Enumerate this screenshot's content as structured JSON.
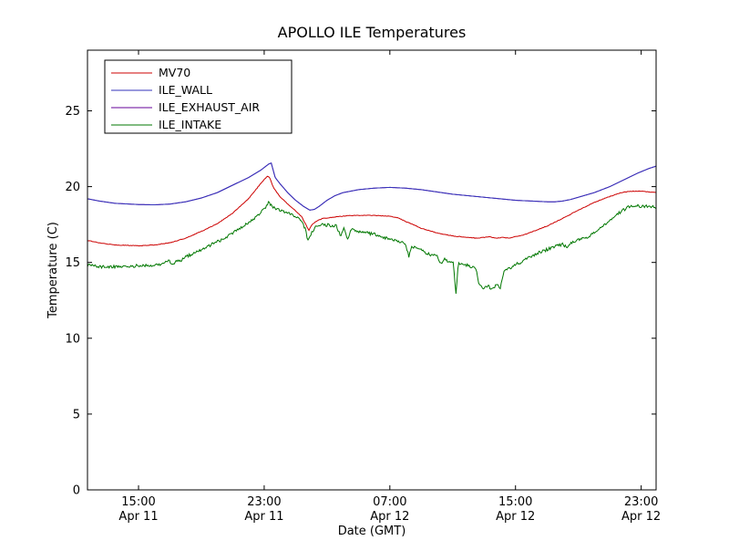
{
  "figure": {
    "title": "APOLLO ILE Temperatures",
    "xlabel": "Date (GMT)",
    "ylabel": "Temperature (C)",
    "background": "#ffffff",
    "frame_color": "#000000"
  },
  "chart_data": {
    "type": "line",
    "title": "APOLLO ILE Temperatures",
    "xlabel": "Date (GMT)",
    "ylabel": "Temperature (C)",
    "x_unit": "hours since Apr 11 00:00 GMT",
    "xlim": [
      11.75,
      47.95
    ],
    "ylim": [
      0,
      29
    ],
    "grid": false,
    "legend_position": "upper-left",
    "yticks": [
      0,
      5,
      10,
      15,
      20,
      25
    ],
    "xticks": [
      {
        "x": 15,
        "line1": "15:00",
        "line2": "Apr 11"
      },
      {
        "x": 23,
        "line1": "23:00",
        "line2": "Apr 11"
      },
      {
        "x": 31,
        "line1": "07:00",
        "line2": "Apr 12"
      },
      {
        "x": 39,
        "line1": "15:00",
        "line2": "Apr 12"
      },
      {
        "x": 47,
        "line1": "23:00",
        "line2": "Apr 12"
      }
    ],
    "draw_order": [
      "ILE_EXHAUST_AIR",
      "ILE_WALL",
      "MV70",
      "ILE_INTAKE"
    ],
    "series": [
      {
        "name": "MV70",
        "color": "#cc0000",
        "noise": 0.02,
        "points": [
          [
            11.75,
            16.45
          ],
          [
            12.5,
            16.3
          ],
          [
            13.5,
            16.15
          ],
          [
            15,
            16.1
          ],
          [
            16,
            16.15
          ],
          [
            17,
            16.3
          ],
          [
            18,
            16.6
          ],
          [
            19,
            17.05
          ],
          [
            20,
            17.55
          ],
          [
            21,
            18.25
          ],
          [
            22,
            19.2
          ],
          [
            22.7,
            20.1
          ],
          [
            23.2,
            20.7
          ],
          [
            23.35,
            20.6
          ],
          [
            23.6,
            19.9
          ],
          [
            24,
            19.35
          ],
          [
            24.5,
            18.85
          ],
          [
            25,
            18.4
          ],
          [
            25.4,
            18.0
          ],
          [
            25.7,
            17.4
          ],
          [
            25.85,
            17.1
          ],
          [
            26,
            17.45
          ],
          [
            26.3,
            17.7
          ],
          [
            26.7,
            17.9
          ],
          [
            27.5,
            18.0
          ],
          [
            28.5,
            18.1
          ],
          [
            30,
            18.1
          ],
          [
            31,
            18.05
          ],
          [
            31.5,
            17.95
          ],
          [
            32,
            17.7
          ],
          [
            32.5,
            17.5
          ],
          [
            33,
            17.25
          ],
          [
            34,
            16.95
          ],
          [
            35,
            16.75
          ],
          [
            36,
            16.65
          ],
          [
            36.5,
            16.6
          ],
          [
            37,
            16.65
          ],
          [
            37.3,
            16.7
          ],
          [
            37.8,
            16.6
          ],
          [
            38.2,
            16.65
          ],
          [
            38.6,
            16.6
          ],
          [
            39,
            16.7
          ],
          [
            39.5,
            16.8
          ],
          [
            40,
            17.0
          ],
          [
            41,
            17.4
          ],
          [
            42,
            17.9
          ],
          [
            43,
            18.45
          ],
          [
            44,
            18.95
          ],
          [
            45,
            19.35
          ],
          [
            45.7,
            19.6
          ],
          [
            46.3,
            19.7
          ],
          [
            47,
            19.7
          ],
          [
            47.5,
            19.65
          ],
          [
            47.95,
            19.6
          ]
        ]
      },
      {
        "name": "ILE_WALL",
        "color": "#3333bb",
        "noise": 0,
        "points": [
          [
            11.75,
            19.2
          ],
          [
            12.5,
            19.05
          ],
          [
            13.5,
            18.9
          ],
          [
            15,
            18.82
          ],
          [
            16,
            18.8
          ],
          [
            17,
            18.85
          ],
          [
            18,
            19.0
          ],
          [
            19,
            19.25
          ],
          [
            20,
            19.6
          ],
          [
            21,
            20.1
          ],
          [
            22,
            20.6
          ],
          [
            22.8,
            21.1
          ],
          [
            23.3,
            21.5
          ],
          [
            23.45,
            21.55
          ],
          [
            23.7,
            20.6
          ],
          [
            24,
            20.2
          ],
          [
            24.5,
            19.6
          ],
          [
            25,
            19.1
          ],
          [
            25.5,
            18.7
          ],
          [
            25.9,
            18.45
          ],
          [
            26.2,
            18.5
          ],
          [
            26.5,
            18.7
          ],
          [
            27,
            19.1
          ],
          [
            27.5,
            19.4
          ],
          [
            28,
            19.6
          ],
          [
            29,
            19.8
          ],
          [
            30,
            19.9
          ],
          [
            31,
            19.95
          ],
          [
            32,
            19.9
          ],
          [
            33,
            19.8
          ],
          [
            34,
            19.65
          ],
          [
            35,
            19.5
          ],
          [
            36,
            19.4
          ],
          [
            37,
            19.3
          ],
          [
            38,
            19.2
          ],
          [
            39,
            19.1
          ],
          [
            40,
            19.05
          ],
          [
            41,
            19.0
          ],
          [
            41.5,
            19.0
          ],
          [
            42,
            19.05
          ],
          [
            42.5,
            19.15
          ],
          [
            43,
            19.3
          ],
          [
            44,
            19.6
          ],
          [
            45,
            20.0
          ],
          [
            46,
            20.5
          ],
          [
            46.8,
            20.9
          ],
          [
            47.5,
            21.2
          ],
          [
            47.95,
            21.35
          ]
        ]
      },
      {
        "name": "ILE_EXHAUST_AIR",
        "color": "#660099",
        "noise": 0,
        "points": [
          [
            11.75,
            19.2
          ],
          [
            12.5,
            19.05
          ],
          [
            13.5,
            18.9
          ],
          [
            15,
            18.82
          ],
          [
            16,
            18.8
          ],
          [
            17,
            18.85
          ],
          [
            18,
            19.0
          ],
          [
            19,
            19.25
          ],
          [
            20,
            19.6
          ],
          [
            21,
            20.1
          ],
          [
            22,
            20.6
          ],
          [
            22.8,
            21.1
          ],
          [
            23.3,
            21.5
          ],
          [
            23.45,
            21.55
          ],
          [
            23.7,
            20.6
          ],
          [
            24,
            20.2
          ],
          [
            24.5,
            19.6
          ],
          [
            25,
            19.1
          ],
          [
            25.5,
            18.7
          ],
          [
            25.9,
            18.45
          ],
          [
            26.2,
            18.5
          ],
          [
            26.5,
            18.7
          ],
          [
            27,
            19.1
          ],
          [
            27.5,
            19.4
          ],
          [
            28,
            19.6
          ],
          [
            29,
            19.8
          ],
          [
            30,
            19.9
          ],
          [
            31,
            19.95
          ],
          [
            32,
            19.9
          ],
          [
            33,
            19.8
          ],
          [
            34,
            19.65
          ],
          [
            35,
            19.5
          ],
          [
            36,
            19.4
          ],
          [
            37,
            19.3
          ],
          [
            38,
            19.2
          ],
          [
            39,
            19.1
          ],
          [
            40,
            19.05
          ],
          [
            41,
            19.0
          ],
          [
            41.5,
            19.0
          ],
          [
            42,
            19.05
          ],
          [
            42.5,
            19.15
          ],
          [
            43,
            19.3
          ],
          [
            44,
            19.6
          ],
          [
            45,
            20.0
          ],
          [
            46,
            20.5
          ],
          [
            46.8,
            20.9
          ],
          [
            47.5,
            21.2
          ],
          [
            47.95,
            21.35
          ]
        ]
      },
      {
        "name": "ILE_INTAKE",
        "color": "#007700",
        "noise": 0.1,
        "points": [
          [
            11.75,
            14.8
          ],
          [
            12.3,
            14.75
          ],
          [
            13,
            14.7
          ],
          [
            14,
            14.75
          ],
          [
            15,
            14.78
          ],
          [
            15.8,
            14.8
          ],
          [
            16.4,
            14.9
          ],
          [
            16.7,
            15.05
          ],
          [
            16.95,
            15.2
          ],
          [
            17.1,
            14.85
          ],
          [
            17.3,
            15.0
          ],
          [
            17.6,
            15.1
          ],
          [
            18,
            15.35
          ],
          [
            18.5,
            15.6
          ],
          [
            19,
            15.85
          ],
          [
            19.5,
            16.1
          ],
          [
            20,
            16.35
          ],
          [
            20.5,
            16.6
          ],
          [
            21,
            16.95
          ],
          [
            21.5,
            17.3
          ],
          [
            22,
            17.6
          ],
          [
            22.5,
            18.0
          ],
          [
            23,
            18.5
          ],
          [
            23.25,
            18.95
          ],
          [
            23.45,
            18.75
          ],
          [
            23.8,
            18.55
          ],
          [
            24.2,
            18.4
          ],
          [
            24.6,
            18.2
          ],
          [
            25,
            18.0
          ],
          [
            25.3,
            17.8
          ],
          [
            25.6,
            17.25
          ],
          [
            25.8,
            16.4
          ],
          [
            26,
            16.9
          ],
          [
            26.3,
            17.35
          ],
          [
            26.7,
            17.5
          ],
          [
            27.2,
            17.45
          ],
          [
            27.6,
            17.4
          ],
          [
            27.9,
            16.7
          ],
          [
            28.05,
            17.35
          ],
          [
            28.35,
            16.45
          ],
          [
            28.5,
            17.2
          ],
          [
            29,
            17.05
          ],
          [
            29.5,
            16.95
          ],
          [
            30,
            16.85
          ],
          [
            30.5,
            16.7
          ],
          [
            31,
            16.55
          ],
          [
            31.5,
            16.4
          ],
          [
            32,
            16.25
          ],
          [
            32.2,
            15.4
          ],
          [
            32.4,
            16.05
          ],
          [
            32.8,
            15.95
          ],
          [
            33.2,
            15.65
          ],
          [
            33.6,
            15.5
          ],
          [
            34,
            15.4
          ],
          [
            34.3,
            14.9
          ],
          [
            34.5,
            15.2
          ],
          [
            34.8,
            15.05
          ],
          [
            35.05,
            14.95
          ],
          [
            35.2,
            12.85
          ],
          [
            35.35,
            14.9
          ],
          [
            35.8,
            14.85
          ],
          [
            36.2,
            14.7
          ],
          [
            36.5,
            14.55
          ],
          [
            36.65,
            13.6
          ],
          [
            36.9,
            13.3
          ],
          [
            37.2,
            13.45
          ],
          [
            37.5,
            13.3
          ],
          [
            37.8,
            13.5
          ],
          [
            38.05,
            13.35
          ],
          [
            38.25,
            14.45
          ],
          [
            38.6,
            14.6
          ],
          [
            39,
            14.85
          ],
          [
            39.5,
            15.1
          ],
          [
            40,
            15.4
          ],
          [
            40.5,
            15.65
          ],
          [
            41,
            15.85
          ],
          [
            41.5,
            16.05
          ],
          [
            42,
            16.2
          ],
          [
            42.3,
            15.95
          ],
          [
            42.6,
            16.35
          ],
          [
            43,
            16.5
          ],
          [
            43.5,
            16.6
          ],
          [
            44,
            16.95
          ],
          [
            44.5,
            17.3
          ],
          [
            45,
            17.75
          ],
          [
            45.5,
            18.2
          ],
          [
            46,
            18.55
          ],
          [
            46.4,
            18.75
          ],
          [
            47,
            18.7
          ],
          [
            47.5,
            18.72
          ],
          [
            47.95,
            18.65
          ]
        ]
      }
    ]
  }
}
